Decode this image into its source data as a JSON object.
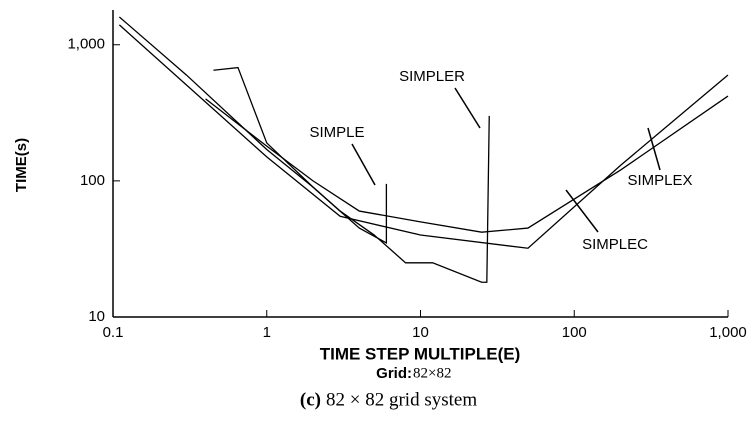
{
  "chart_data": {
    "type": "line",
    "ylabel": "TIME(s)",
    "xlabel": "TIME STEP MULTIPLE(E)",
    "grid_label": "Grid:",
    "grid_value": "82×82",
    "caption_label": "(c)",
    "caption": "82 × 82 grid system",
    "xlog": true,
    "ylog": true,
    "grid": false,
    "color": "#000000",
    "xlim": [
      0.1,
      1000
    ],
    "ylim": [
      10,
      1800
    ],
    "xticks": [
      0.1,
      1,
      10,
      100,
      {
        "value": 1000,
        "label": "1,000"
      }
    ],
    "yticks": [
      10,
      100,
      {
        "value": 1000,
        "label": "1,000"
      }
    ],
    "series": [
      {
        "name": "SIMPLER",
        "color": "#000000",
        "x": [
          0.11,
          0.3,
          1,
          2,
          3,
          5,
          8,
          12,
          25,
          27,
          28
        ],
        "values": [
          1600,
          600,
          170,
          90,
          60,
          40,
          25,
          25,
          18,
          18,
          300
        ]
      },
      {
        "name": "SIMPLE",
        "color": "#000000",
        "x": [
          0.45,
          0.65,
          1,
          2,
          4,
          6,
          6
        ],
        "values": [
          650,
          680,
          190,
          90,
          45,
          35,
          95
        ]
      },
      {
        "name": "SIMPLEC",
        "color": "#000000",
        "x": [
          0.11,
          1,
          3,
          10,
          50,
          200,
          1000
        ],
        "values": [
          1400,
          150,
          55,
          40,
          32,
          130,
          600
        ]
      },
      {
        "name": "SIMPLEX",
        "color": "#000000",
        "x": [
          0.4,
          1,
          2,
          4,
          10,
          25,
          50,
          200,
          1000
        ],
        "values": [
          400,
          180,
          100,
          60,
          50,
          42,
          45,
          120,
          420
        ]
      }
    ]
  }
}
